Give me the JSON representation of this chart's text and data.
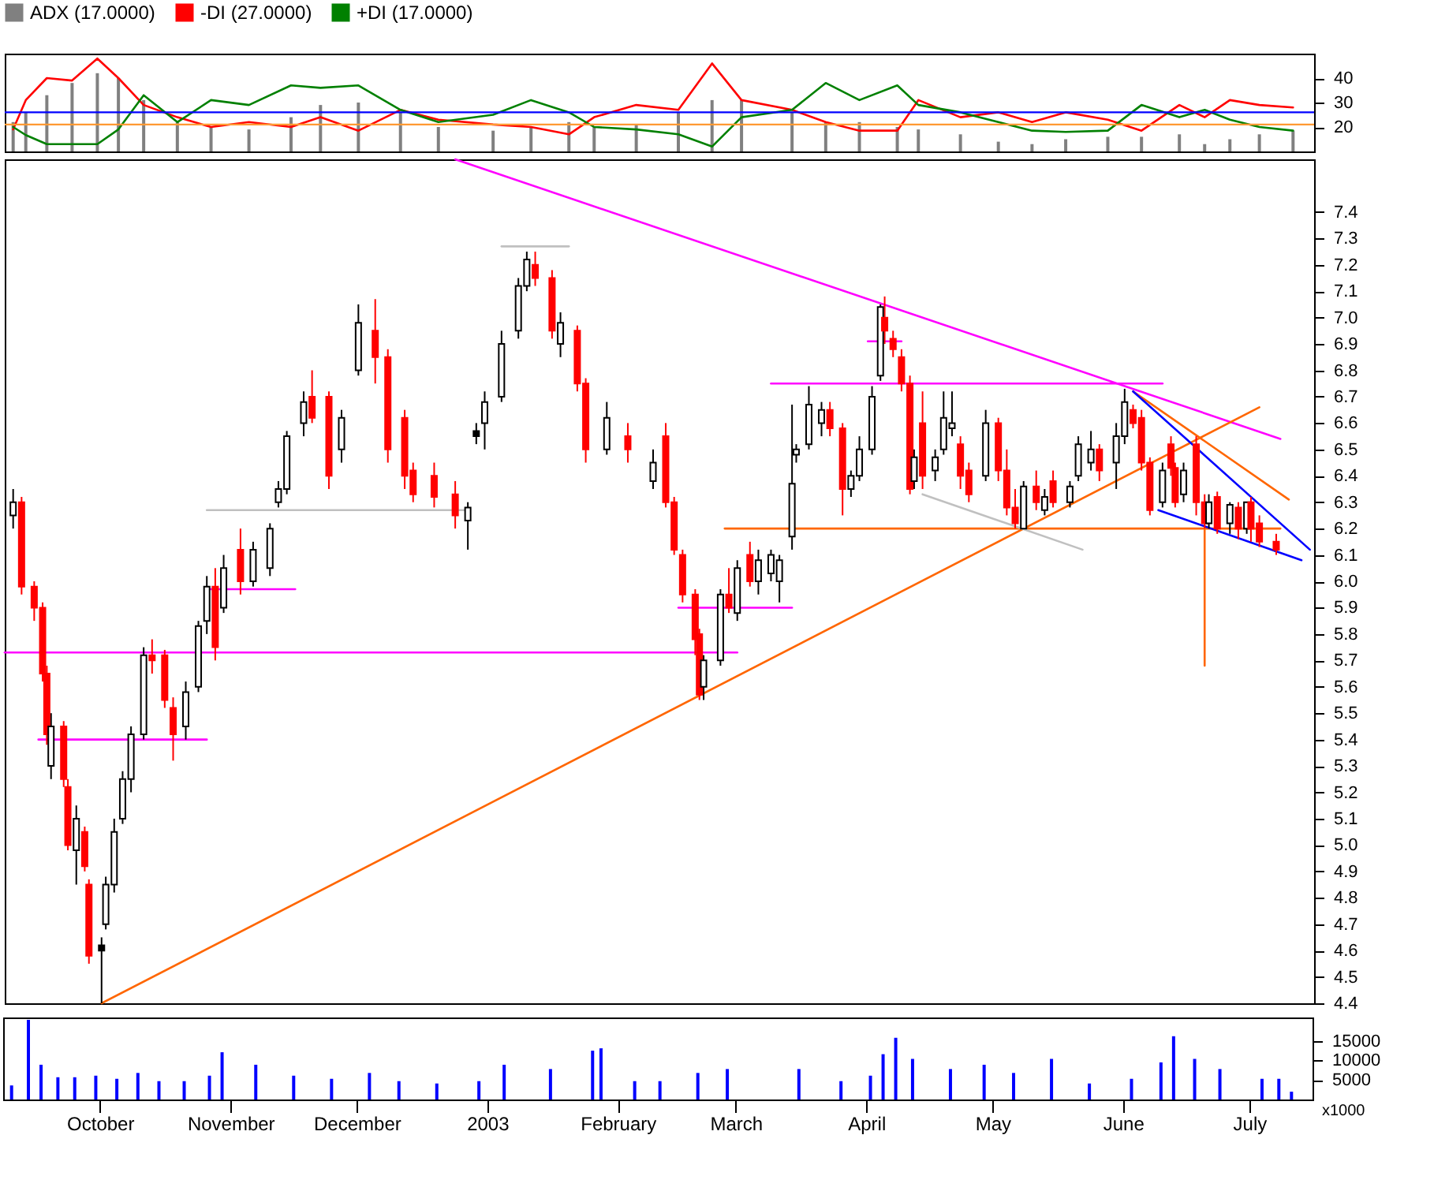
{
  "chart_data": [
    {
      "type": "line",
      "xlim": [
        "2002-09-08",
        "2003-07-16"
      ],
      "ylim": [
        10,
        50
      ],
      "yticks": [
        20,
        30,
        40
      ],
      "tick_labels": "y",
      "legend": "top",
      "ref_lines": [
        {
          "axis": "y",
          "value": 26,
          "color": "#0000ff"
        },
        {
          "axis": "y",
          "value": 21,
          "color": "#ff9933"
        }
      ],
      "series": [
        {
          "name": "ADX (17.0000)",
          "type": "bar",
          "color": "#808080",
          "x": [
            "2002-09-10",
            "2002-09-13",
            "2002-09-18",
            "2002-09-24",
            "2002-09-30",
            "2002-10-05",
            "2002-10-11",
            "2002-10-19",
            "2002-10-27",
            "2002-11-05",
            "2002-11-15",
            "2002-11-22",
            "2002-12-01",
            "2002-12-11",
            "2002-12-20",
            "2003-01-02",
            "2003-01-11",
            "2003-01-20",
            "2003-01-26",
            "2003-02-05",
            "2003-02-15",
            "2003-02-23",
            "2003-03-02",
            "2003-03-14",
            "2003-03-22",
            "2003-03-30",
            "2003-04-08",
            "2003-04-13",
            "2003-04-23",
            "2003-05-02",
            "2003-05-10",
            "2003-05-18",
            "2003-05-28",
            "2003-06-05",
            "2003-06-14",
            "2003-06-20",
            "2003-06-26",
            "2003-07-03",
            "2003-07-11"
          ],
          "values": [
            22,
            26,
            33,
            38,
            42,
            40,
            31,
            22,
            20,
            19,
            24,
            29,
            30,
            26,
            20,
            18.5,
            20,
            22,
            20,
            21,
            26,
            31,
            31,
            26,
            22,
            22,
            20,
            19,
            17,
            14,
            13,
            15,
            16,
            16,
            17,
            13,
            15,
            17,
            18.5
          ]
        },
        {
          "name": "-DI (27.0000)",
          "type": "line",
          "color": "#ff0000",
          "x": [
            "2002-09-10",
            "2002-09-13",
            "2002-09-18",
            "2002-09-24",
            "2002-09-30",
            "2002-10-05",
            "2002-10-11",
            "2002-10-19",
            "2002-10-27",
            "2002-11-05",
            "2002-11-15",
            "2002-11-22",
            "2002-12-01",
            "2002-12-11",
            "2002-12-20",
            "2003-01-02",
            "2003-01-11",
            "2003-01-20",
            "2003-01-26",
            "2003-02-05",
            "2003-02-15",
            "2003-02-23",
            "2003-03-02",
            "2003-03-14",
            "2003-03-22",
            "2003-03-30",
            "2003-04-08",
            "2003-04-13",
            "2003-04-23",
            "2003-05-02",
            "2003-05-10",
            "2003-05-18",
            "2003-05-28",
            "2003-06-05",
            "2003-06-14",
            "2003-06-20",
            "2003-06-26",
            "2003-07-03",
            "2003-07-11"
          ],
          "values": [
            19,
            31,
            40,
            39,
            48,
            40,
            29,
            24,
            20,
            22,
            20,
            24,
            18.5,
            27,
            23,
            21,
            20,
            17,
            24,
            29,
            27,
            46,
            31,
            27,
            22,
            18.5,
            18.5,
            31,
            24,
            26,
            22,
            26,
            23,
            18.5,
            29,
            24,
            31,
            29,
            28
          ]
        },
        {
          "name": "+DI (17.0000)",
          "type": "line",
          "color": "#008000",
          "x": [
            "2002-09-10",
            "2002-09-13",
            "2002-09-18",
            "2002-09-24",
            "2002-09-30",
            "2002-10-05",
            "2002-10-11",
            "2002-10-19",
            "2002-10-27",
            "2002-11-05",
            "2002-11-15",
            "2002-11-22",
            "2002-12-01",
            "2002-12-11",
            "2002-12-20",
            "2003-01-02",
            "2003-01-11",
            "2003-01-20",
            "2003-01-26",
            "2003-02-05",
            "2003-02-15",
            "2003-02-23",
            "2003-03-02",
            "2003-03-14",
            "2003-03-22",
            "2003-03-30",
            "2003-04-08",
            "2003-04-13",
            "2003-04-23",
            "2003-05-02",
            "2003-05-10",
            "2003-05-18",
            "2003-05-28",
            "2003-06-05",
            "2003-06-14",
            "2003-06-20",
            "2003-06-26",
            "2003-07-03",
            "2003-07-11"
          ],
          "values": [
            20,
            16.7,
            13,
            13,
            13,
            19,
            33,
            22,
            31,
            29,
            37,
            36,
            37,
            27,
            22,
            25,
            31,
            26,
            20,
            19,
            17,
            12,
            24,
            27,
            38,
            31,
            37,
            29,
            26,
            22,
            18.5,
            18,
            18.5,
            29,
            24,
            27,
            23,
            20,
            18.5
          ]
        }
      ]
    },
    {
      "type": "candlestick",
      "xlim": [
        "2002-09-08",
        "2003-07-16"
      ],
      "ylim": [
        4.4,
        7.6
      ],
      "tick_labels": "y",
      "yticks": [
        4.4,
        4.5,
        4.6,
        4.7,
        4.8,
        4.9,
        {
          "value": 5,
          "label": "5.0"
        },
        5.1,
        5.2,
        5.3,
        5.4,
        5.5,
        5.6,
        5.7,
        5.8,
        5.9,
        {
          "value": 6,
          "label": "6.0"
        },
        6.1,
        6.2,
        6.3,
        6.4,
        6.5,
        6.6,
        6.7,
        6.8,
        6.9,
        {
          "value": 7,
          "label": "7.0"
        },
        7.1,
        7.2,
        7.3,
        7.4
      ],
      "x": [
        "2002-09-10",
        "2002-09-12",
        "2002-09-15",
        "2002-09-17",
        "2002-09-18",
        "2002-09-19",
        "2002-09-22",
        "2002-09-23",
        "2002-09-25",
        "2002-09-27",
        "2002-09-28",
        "2002-10-01",
        "2002-10-02",
        "2002-10-04",
        "2002-10-06",
        "2002-10-08",
        "2002-10-11",
        "2002-10-13",
        "2002-10-16",
        "2002-10-18",
        "2002-10-21",
        "2002-10-24",
        "2002-10-26",
        "2002-10-28",
        "2002-10-30",
        "2002-11-03",
        "2002-11-06",
        "2002-11-10",
        "2002-11-12",
        "2002-11-14",
        "2002-11-18",
        "2002-11-20",
        "2002-11-24",
        "2002-11-27",
        "2002-12-01",
        "2002-12-05",
        "2002-12-08",
        "2002-12-12",
        "2002-12-14",
        "2002-12-19",
        "2002-12-24",
        "2002-12-27",
        "2002-12-29",
        "2002-12-31",
        "2003-01-04",
        "2003-01-08",
        "2003-01-10",
        "2003-01-12",
        "2003-01-16",
        "2003-01-18",
        "2003-01-22",
        "2003-01-24",
        "2003-01-29",
        "2003-02-03",
        "2003-02-09",
        "2003-02-12",
        "2003-02-14",
        "2003-02-16",
        "2003-02-19",
        "2003-02-20",
        "2003-02-21",
        "2003-02-25",
        "2003-02-27",
        "2003-03-01",
        "2003-03-04",
        "2003-03-06",
        "2003-03-09",
        "2003-03-11",
        "2003-03-14",
        "2003-03-15",
        "2003-03-18",
        "2003-03-21",
        "2003-03-23",
        "2003-03-26",
        "2003-03-28",
        "2003-03-30",
        "2003-04-02",
        "2003-04-04",
        "2003-04-05",
        "2003-04-07",
        "2003-04-09",
        "2003-04-11",
        "2003-04-12",
        "2003-04-14",
        "2003-04-17",
        "2003-04-19",
        "2003-04-21",
        "2003-04-23",
        "2003-04-25",
        "2003-04-29",
        "2003-05-02",
        "2003-05-04",
        "2003-05-06",
        "2003-05-08",
        "2003-05-11",
        "2003-05-13",
        "2003-05-15",
        "2003-05-19",
        "2003-05-21",
        "2003-05-24",
        "2003-05-26",
        "2003-05-30",
        "2003-06-01",
        "2003-06-03",
        "2003-06-05",
        "2003-06-07",
        "2003-06-10",
        "2003-06-12",
        "2003-06-13",
        "2003-06-15",
        "2003-06-18",
        "2003-06-20",
        "2003-06-21",
        "2003-06-23",
        "2003-06-26",
        "2003-06-28",
        "2003-06-30",
        "2003-07-01",
        "2003-07-03",
        "2003-07-07"
      ],
      "ohlc": [
        [
          6.25,
          6.35,
          6.2,
          6.3
        ],
        [
          6.3,
          6.32,
          5.95,
          5.98
        ],
        [
          5.98,
          6.0,
          5.85,
          5.9
        ],
        [
          5.9,
          5.92,
          5.62,
          5.65
        ],
        [
          5.65,
          5.68,
          5.38,
          5.42
        ],
        [
          5.3,
          5.5,
          5.25,
          5.45
        ],
        [
          5.45,
          5.47,
          5.22,
          5.25
        ],
        [
          5.22,
          5.25,
          4.98,
          5.0
        ],
        [
          4.98,
          5.15,
          4.85,
          5.1
        ],
        [
          5.05,
          5.07,
          4.9,
          4.92
        ],
        [
          4.85,
          4.87,
          4.55,
          4.58
        ],
        [
          4.62,
          4.65,
          4.4,
          4.6
        ],
        [
          4.7,
          4.88,
          4.68,
          4.85
        ],
        [
          4.85,
          5.1,
          4.82,
          5.05
        ],
        [
          5.1,
          5.28,
          5.08,
          5.25
        ],
        [
          5.25,
          5.45,
          5.2,
          5.42
        ],
        [
          5.42,
          5.75,
          5.4,
          5.72
        ],
        [
          5.72,
          5.78,
          5.65,
          5.7
        ],
        [
          5.72,
          5.74,
          5.52,
          5.55
        ],
        [
          5.52,
          5.56,
          5.32,
          5.42
        ],
        [
          5.45,
          5.62,
          5.4,
          5.58
        ],
        [
          5.6,
          5.85,
          5.58,
          5.83
        ],
        [
          5.85,
          6.02,
          5.8,
          5.98
        ],
        [
          5.98,
          6.05,
          5.7,
          5.75
        ],
        [
          5.9,
          6.1,
          5.88,
          6.05
        ],
        [
          6.12,
          6.2,
          5.95,
          6.0
        ],
        [
          6.0,
          6.15,
          5.98,
          6.12
        ],
        [
          6.05,
          6.22,
          6.02,
          6.2
        ],
        [
          6.3,
          6.38,
          6.28,
          6.35
        ],
        [
          6.35,
          6.57,
          6.33,
          6.55
        ],
        [
          6.6,
          6.72,
          6.55,
          6.68
        ],
        [
          6.7,
          6.8,
          6.6,
          6.62
        ],
        [
          6.7,
          6.72,
          6.35,
          6.4
        ],
        [
          6.5,
          6.65,
          6.45,
          6.62
        ],
        [
          6.8,
          7.05,
          6.78,
          6.98
        ],
        [
          6.95,
          7.07,
          6.75,
          6.85
        ],
        [
          6.85,
          6.88,
          6.45,
          6.5
        ],
        [
          6.62,
          6.65,
          6.35,
          6.4
        ],
        [
          6.42,
          6.45,
          6.3,
          6.33
        ],
        [
          6.4,
          6.45,
          6.28,
          6.32
        ],
        [
          6.33,
          6.38,
          6.2,
          6.25
        ],
        [
          6.23,
          6.3,
          6.12,
          6.28
        ],
        [
          6.57,
          6.6,
          6.52,
          6.55
        ],
        [
          6.6,
          6.72,
          6.5,
          6.68
        ],
        [
          6.7,
          6.95,
          6.68,
          6.9
        ],
        [
          6.95,
          7.15,
          6.92,
          7.12
        ],
        [
          7.12,
          7.25,
          7.1,
          7.22
        ],
        [
          7.2,
          7.25,
          7.12,
          7.15
        ],
        [
          7.15,
          7.18,
          6.92,
          6.95
        ],
        [
          6.9,
          7.02,
          6.85,
          6.98
        ],
        [
          6.95,
          6.97,
          6.72,
          6.75
        ],
        [
          6.75,
          6.77,
          6.45,
          6.5
        ],
        [
          6.5,
          6.68,
          6.48,
          6.62
        ],
        [
          6.55,
          6.6,
          6.45,
          6.5
        ],
        [
          6.38,
          6.5,
          6.35,
          6.45
        ],
        [
          6.55,
          6.6,
          6.28,
          6.3
        ],
        [
          6.3,
          6.32,
          6.1,
          6.12
        ],
        [
          6.1,
          6.12,
          5.92,
          5.95
        ],
        [
          5.95,
          5.97,
          5.72,
          5.78
        ],
        [
          5.8,
          5.82,
          5.55,
          5.57
        ],
        [
          5.6,
          5.72,
          5.55,
          5.7
        ],
        [
          5.7,
          5.97,
          5.68,
          5.95
        ],
        [
          5.95,
          6.05,
          5.88,
          5.9
        ],
        [
          5.88,
          6.08,
          5.85,
          6.05
        ],
        [
          6.1,
          6.15,
          5.98,
          6.0
        ],
        [
          6.0,
          6.12,
          5.95,
          6.08
        ],
        [
          6.03,
          6.12,
          6.0,
          6.1
        ],
        [
          6.0,
          6.1,
          5.92,
          6.08
        ],
        [
          6.17,
          6.67,
          6.12,
          6.37
        ],
        [
          6.48,
          6.52,
          6.45,
          6.5
        ],
        [
          6.52,
          6.74,
          6.5,
          6.67
        ],
        [
          6.6,
          6.68,
          6.55,
          6.65
        ],
        [
          6.65,
          6.68,
          6.55,
          6.58
        ],
        [
          6.58,
          6.6,
          6.25,
          6.35
        ],
        [
          6.35,
          6.42,
          6.32,
          6.4
        ],
        [
          6.4,
          6.55,
          6.38,
          6.5
        ],
        [
          6.5,
          6.74,
          6.48,
          6.7
        ],
        [
          6.78,
          7.05,
          6.76,
          7.04
        ],
        [
          7.0,
          7.08,
          6.9,
          6.95
        ],
        [
          6.92,
          6.95,
          6.85,
          6.88
        ],
        [
          6.85,
          6.88,
          6.72,
          6.75
        ],
        [
          6.75,
          6.78,
          6.33,
          6.35
        ],
        [
          6.38,
          6.5,
          6.35,
          6.47
        ],
        [
          6.6,
          6.72,
          6.35,
          6.4
        ],
        [
          6.42,
          6.5,
          6.38,
          6.47
        ],
        [
          6.5,
          6.72,
          6.48,
          6.62
        ],
        [
          6.58,
          6.72,
          6.55,
          6.6
        ],
        [
          6.52,
          6.55,
          6.35,
          6.4
        ],
        [
          6.42,
          6.45,
          6.3,
          6.33
        ],
        [
          6.4,
          6.65,
          6.38,
          6.6
        ],
        [
          6.6,
          6.62,
          6.38,
          6.42
        ],
        [
          6.42,
          6.5,
          6.25,
          6.28
        ],
        [
          6.28,
          6.35,
          6.2,
          6.22
        ],
        [
          6.2,
          6.38,
          6.2,
          6.36
        ],
        [
          6.36,
          6.42,
          6.27,
          6.3
        ],
        [
          6.27,
          6.35,
          6.25,
          6.32
        ],
        [
          6.38,
          6.42,
          6.28,
          6.3
        ],
        [
          6.3,
          6.38,
          6.28,
          6.36
        ],
        [
          6.4,
          6.55,
          6.38,
          6.52
        ],
        [
          6.45,
          6.57,
          6.42,
          6.5
        ],
        [
          6.5,
          6.52,
          6.38,
          6.42
        ],
        [
          6.45,
          6.6,
          6.35,
          6.55
        ],
        [
          6.55,
          6.73,
          6.52,
          6.68
        ],
        [
          6.65,
          6.67,
          6.58,
          6.6
        ],
        [
          6.62,
          6.65,
          6.42,
          6.45
        ],
        [
          6.45,
          6.47,
          6.25,
          6.27
        ],
        [
          6.3,
          6.45,
          6.28,
          6.42
        ],
        [
          6.52,
          6.55,
          6.4,
          6.43
        ],
        [
          6.43,
          6.45,
          6.28,
          6.3
        ],
        [
          6.33,
          6.45,
          6.3,
          6.42
        ],
        [
          6.52,
          6.55,
          6.25,
          6.3
        ],
        [
          6.3,
          6.33,
          6.2,
          6.22
        ],
        [
          6.22,
          6.33,
          6.2,
          6.3
        ],
        [
          6.32,
          6.34,
          6.18,
          6.2
        ],
        [
          6.22,
          6.3,
          6.18,
          6.29
        ],
        [
          6.28,
          6.3,
          6.16,
          6.2
        ],
        [
          6.2,
          6.3,
          6.18,
          6.3
        ],
        [
          6.3,
          6.32,
          6.15,
          6.2
        ],
        [
          6.22,
          6.25,
          6.13,
          6.15
        ],
        [
          6.15,
          6.18,
          6.1,
          6.12
        ]
      ],
      "colors": [
        "#ffffff",
        "#ff0000",
        "#ff0000",
        "#ff0000",
        "#ff0000",
        "#ffffff",
        "#ff0000",
        "#ff0000",
        "#ffffff",
        "#ff0000",
        "#ff0000",
        "#000000",
        "#ffffff",
        "#ffffff",
        "#ffffff",
        "#ffffff",
        "#ffffff",
        "#ff0000",
        "#ff0000",
        "#ff0000",
        "#ffffff",
        "#ffffff",
        "#ffffff",
        "#ff0000",
        "#ffffff",
        "#ff0000",
        "#ffffff",
        "#ffffff",
        "#ffffff",
        "#ffffff",
        "#ffffff",
        "#ff0000",
        "#ff0000",
        "#ffffff",
        "#ffffff",
        "#ff0000",
        "#ff0000",
        "#ff0000",
        "#ff0000",
        "#ff0000",
        "#ff0000",
        "#ffffff",
        "#000000",
        "#ffffff",
        "#ffffff",
        "#ffffff",
        "#ffffff",
        "#ff0000",
        "#ff0000",
        "#ffffff",
        "#ff0000",
        "#ff0000",
        "#ffffff",
        "#ff0000",
        "#ffffff",
        "#ff0000",
        "#ff0000",
        "#ff0000",
        "#ff0000",
        "#ff0000",
        "#ffffff",
        "#ffffff",
        "#ff0000",
        "#ffffff",
        "#ff0000",
        "#ffffff",
        "#ffffff",
        "#ffffff",
        "#ffffff",
        "#ffffff",
        "#ffffff",
        "#ffffff",
        "#ff0000",
        "#ff0000",
        "#ffffff",
        "#ffffff",
        "#ffffff",
        "#ffffff",
        "#ff0000",
        "#ff0000",
        "#ff0000",
        "#ff0000",
        "#ffffff",
        "#ff0000",
        "#ffffff",
        "#ffffff",
        "#ffffff",
        "#ff0000",
        "#ff0000",
        "#ffffff",
        "#ff0000",
        "#ff0000",
        "#ff0000",
        "#ffffff",
        "#ff0000",
        "#ffffff",
        "#ff0000",
        "#ffffff",
        "#ffffff",
        "#ffffff",
        "#ff0000",
        "#ffffff",
        "#ffffff",
        "#ff0000",
        "#ff0000",
        "#ff0000",
        "#ffffff",
        "#ff0000",
        "#ff0000",
        "#ffffff",
        "#ff0000",
        "#ff0000",
        "#ffffff",
        "#ff0000",
        "#ffffff",
        "#ff0000",
        "#ffffff",
        "#ff0000",
        "#ff0000",
        "#ff0000"
      ],
      "series": [
        {
          "type": "line",
          "color": "#ff00ff",
          "x": [
            "2002-12-24",
            "2003-07-08"
          ],
          "values": [
            7.6,
            6.54
          ]
        },
        {
          "type": "line",
          "color": "#ff6600",
          "x": [
            "2002-10-01",
            "2003-07-03"
          ],
          "values": [
            4.4,
            6.66
          ]
        },
        {
          "type": "line",
          "color": "#ff00ff",
          "x": [
            "2002-09-08",
            "2003-03-01"
          ],
          "values": [
            5.73,
            5.73
          ]
        },
        {
          "type": "line",
          "color": "#ff00ff",
          "x": [
            "2002-09-16",
            "2002-10-26"
          ],
          "values": [
            5.4,
            5.4
          ]
        },
        {
          "type": "line",
          "color": "#c0c0c0",
          "x": [
            "2002-10-26",
            "2002-12-27"
          ],
          "values": [
            6.27,
            6.27
          ]
        },
        {
          "type": "line",
          "color": "#ff00ff",
          "x": [
            "2002-10-26",
            "2002-11-16"
          ],
          "values": [
            5.97,
            5.97
          ]
        },
        {
          "type": "line",
          "color": "#c0c0c0",
          "x": [
            "2003-01-04",
            "2003-01-20"
          ],
          "values": [
            7.27,
            7.27
          ]
        },
        {
          "type": "line",
          "color": "#ff00ff",
          "x": [
            "2003-02-15",
            "2003-03-14"
          ],
          "values": [
            5.9,
            5.9
          ]
        },
        {
          "type": "line",
          "color": "#ff00ff",
          "x": [
            "2003-03-09",
            "2003-06-10"
          ],
          "values": [
            6.75,
            6.75
          ]
        },
        {
          "type": "line",
          "color": "#ff00ff",
          "x": [
            "2003-04-01",
            "2003-04-09"
          ],
          "values": [
            6.91,
            6.91
          ]
        },
        {
          "type": "line",
          "color": "#ff6600",
          "x": [
            "2003-02-26",
            "2003-07-08"
          ],
          "values": [
            6.2,
            6.2
          ]
        },
        {
          "type": "line",
          "color": "#ff6600",
          "x": [
            "2003-06-20",
            "2003-06-20"
          ],
          "values": [
            6.2,
            5.68
          ]
        },
        {
          "type": "line",
          "color": "#c0c0c0",
          "x": [
            "2003-04-14",
            "2003-05-22"
          ],
          "values": [
            6.33,
            6.12
          ]
        },
        {
          "type": "line",
          "color": "#ff6600",
          "x": [
            "2003-06-03",
            "2003-07-10"
          ],
          "values": [
            6.72,
            6.31
          ]
        },
        {
          "type": "line",
          "color": "#0000ff",
          "x": [
            "2003-06-03",
            "2003-07-15"
          ],
          "values": [
            6.72,
            6.12
          ]
        },
        {
          "type": "line",
          "color": "#0000ff",
          "x": [
            "2003-06-09",
            "2003-07-13"
          ],
          "values": [
            6.27,
            6.08
          ]
        }
      ]
    },
    {
      "type": "bar",
      "xlim": [
        "2002-09-08",
        "2003-07-16"
      ],
      "ylim": [
        0,
        21000
      ],
      "yticks": [
        5000,
        10000,
        15000
      ],
      "annotations": [
        "x1000"
      ],
      "color": "#0000ff",
      "xticks": [
        {
          "value": "2002-10-01",
          "label": "October"
        },
        {
          "value": "2002-11-01",
          "label": "November"
        },
        {
          "value": "2002-12-01",
          "label": "December"
        },
        {
          "value": "2003-01-01",
          "label": "2003"
        },
        {
          "value": "2003-02-01",
          "label": "February"
        },
        {
          "value": "2003-03-01",
          "label": "March"
        },
        {
          "value": "2003-04-01",
          "label": "April"
        },
        {
          "value": "2003-05-01",
          "label": "May"
        },
        {
          "value": "2003-06-01",
          "label": "June"
        },
        {
          "value": "2003-07-01",
          "label": "July"
        }
      ],
      "x": [
        "2002-09-10",
        "2002-09-14",
        "2002-09-17",
        "2002-09-21",
        "2002-09-25",
        "2002-09-30",
        "2002-10-05",
        "2002-10-10",
        "2002-10-15",
        "2002-10-21",
        "2002-10-27",
        "2002-10-30",
        "2002-11-07",
        "2002-11-16",
        "2002-11-25",
        "2002-12-04",
        "2002-12-11",
        "2002-12-20",
        "2002-12-30",
        "2003-01-05",
        "2003-01-16",
        "2003-01-26",
        "2003-01-28",
        "2003-02-05",
        "2003-02-11",
        "2003-02-20",
        "2003-02-27",
        "2003-03-16",
        "2003-03-26",
        "2003-04-02",
        "2003-04-05",
        "2003-04-08",
        "2003-04-12",
        "2003-04-21",
        "2003-04-29",
        "2003-05-06",
        "2003-05-15",
        "2003-05-24",
        "2003-06-03",
        "2003-06-10",
        "2003-06-13",
        "2003-06-18",
        "2003-06-24",
        "2003-07-04",
        "2003-07-08",
        "2003-07-11"
      ],
      "values": [
        3600,
        20400,
        8900,
        5700,
        5700,
        6100,
        5300,
        6800,
        4700,
        4700,
        6100,
        12100,
        8900,
        6100,
        5300,
        6800,
        4700,
        4100,
        4700,
        8900,
        7800,
        12500,
        13100,
        4700,
        4700,
        6800,
        7800,
        7800,
        4700,
        6100,
        11600,
        15800,
        10400,
        7800,
        8900,
        6800,
        10400,
        4100,
        5300,
        9500,
        16200,
        10400,
        7800,
        5300,
        5300,
        2000
      ]
    }
  ]
}
